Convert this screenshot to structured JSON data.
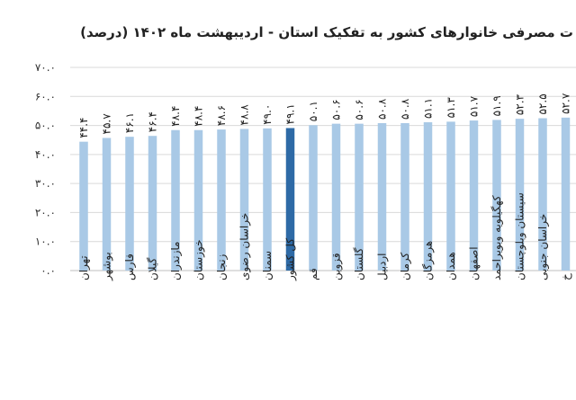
{
  "chart_data": {
    "type": "bar",
    "title": "ت مصرفی خانوارهای کشور به تفکیک استان - اردیبهشت ماه ۱۴۰۲ (درصد)",
    "xlabel": "",
    "ylabel": "",
    "ylim": [
      0,
      70
    ],
    "grid": true,
    "y_ticks": [
      "۰.۰",
      "۱۰.۰",
      "۲۰.۰",
      "۳۰.۰",
      "۴۰.۰",
      "۵۰.۰",
      "۶۰.۰",
      "۷۰.۰"
    ],
    "categories": [
      "تهران",
      "بوشهر",
      "فارس",
      "گیلان",
      "مازندران",
      "خوزستان",
      "زنجان",
      "خراسان رضوی",
      "سمنان",
      "کل کشور",
      "قم",
      "قزوین",
      "گلستان",
      "اردبیل",
      "کرمان",
      "هرمزگان",
      "همدان",
      "اصفهان",
      "کهگیلویه وبویراحمد",
      "سیستان وبلوچستان",
      "خراسان جنوبی",
      "خ"
    ],
    "values": [
      44.4,
      45.7,
      46.1,
      46.4,
      48.4,
      48.4,
      48.6,
      48.8,
      49.0,
      49.1,
      50.1,
      50.6,
      50.6,
      50.8,
      50.8,
      51.1,
      51.3,
      51.7,
      51.9,
      52.3,
      52.5,
      52.7
    ],
    "value_labels": [
      "۴۴.۴",
      "۴۵.۷",
      "۴۶.۱",
      "۴۶.۴",
      "۴۸.۴",
      "۴۸.۴",
      "۴۸.۶",
      "۴۸.۸",
      "۴۹.۰",
      "۴۹.۱",
      "۵۰.۱",
      "۵۰.۶",
      "۵۰.۶",
      "۵۰.۸",
      "۵۰.۸",
      "۵۱.۱",
      "۵۱.۳",
      "۵۱.۷",
      "۵۱.۹",
      "۵۲.۳",
      "۵۲.۵",
      "۵۲.۷"
    ],
    "highlight_category": "کل کشور",
    "colors": {
      "bar": "#a9c9e6",
      "highlight": "#2e6aa6",
      "grid": "#d9d9d9",
      "axis": "#bfbfbf"
    }
  }
}
